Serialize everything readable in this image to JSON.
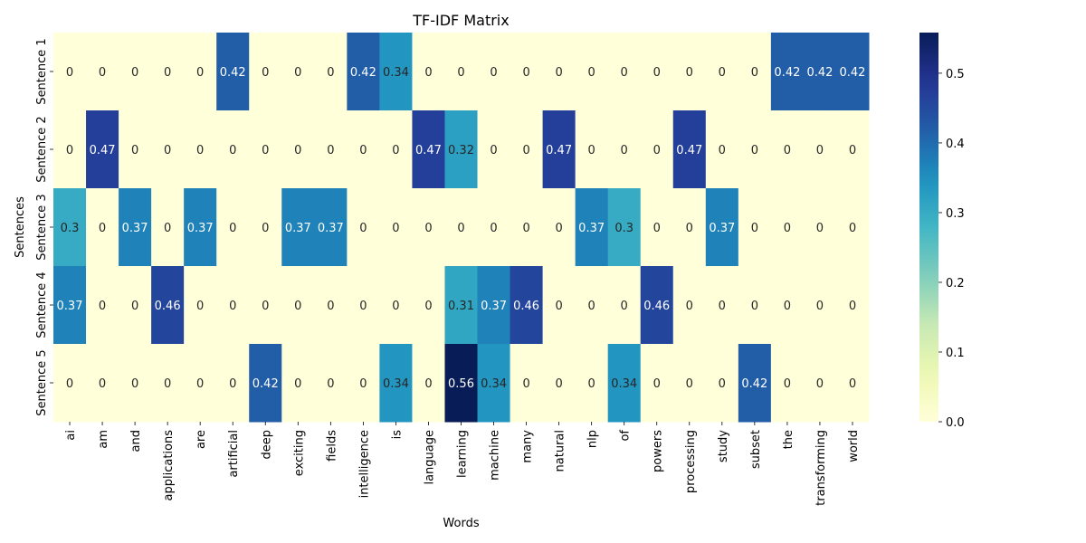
{
  "chart_data": {
    "type": "heatmap",
    "title": "TF-IDF Matrix",
    "xlabel": "Words",
    "ylabel": "Sentences",
    "x_categories": [
      "ai",
      "am",
      "and",
      "applications",
      "are",
      "artificial",
      "deep",
      "exciting",
      "fields",
      "intelligence",
      "is",
      "language",
      "learning",
      "machine",
      "many",
      "natural",
      "nlp",
      "of",
      "powers",
      "processing",
      "study",
      "subset",
      "the",
      "transforming",
      "world"
    ],
    "y_categories": [
      "Sentence 1",
      "Sentence 2",
      "Sentence 3",
      "Sentence 4",
      "Sentence 5"
    ],
    "values": [
      [
        0,
        0,
        0,
        0,
        0,
        0.42,
        0,
        0,
        0,
        0.42,
        0.34,
        0,
        0,
        0,
        0,
        0,
        0,
        0,
        0,
        0,
        0,
        0,
        0.42,
        0.42,
        0.42
      ],
      [
        0,
        0.47,
        0,
        0,
        0,
        0,
        0,
        0,
        0,
        0,
        0,
        0.47,
        0.32,
        0,
        0,
        0.47,
        0,
        0,
        0,
        0.47,
        0,
        0,
        0,
        0,
        0
      ],
      [
        0.3,
        0,
        0.37,
        0,
        0.37,
        0,
        0,
        0.37,
        0.37,
        0,
        0,
        0,
        0,
        0,
        0,
        0,
        0.37,
        0.3,
        0,
        0,
        0.37,
        0,
        0,
        0,
        0
      ],
      [
        0.37,
        0,
        0,
        0.46,
        0,
        0,
        0,
        0,
        0,
        0,
        0,
        0,
        0.31,
        0.37,
        0.46,
        0,
        0,
        0,
        0.46,
        0,
        0,
        0,
        0,
        0,
        0
      ],
      [
        0,
        0,
        0,
        0,
        0,
        0,
        0.42,
        0,
        0,
        0,
        0.34,
        0,
        0.56,
        0.34,
        0,
        0,
        0,
        0.34,
        0,
        0,
        0,
        0.42,
        0,
        0,
        0
      ]
    ],
    "colorscale": "YlGnBu",
    "zlim": [
      0,
      0.5583
    ],
    "colorbar_ticks": [
      "0.0",
      "0.1",
      "0.2",
      "0.3",
      "0.4",
      "0.5"
    ]
  }
}
